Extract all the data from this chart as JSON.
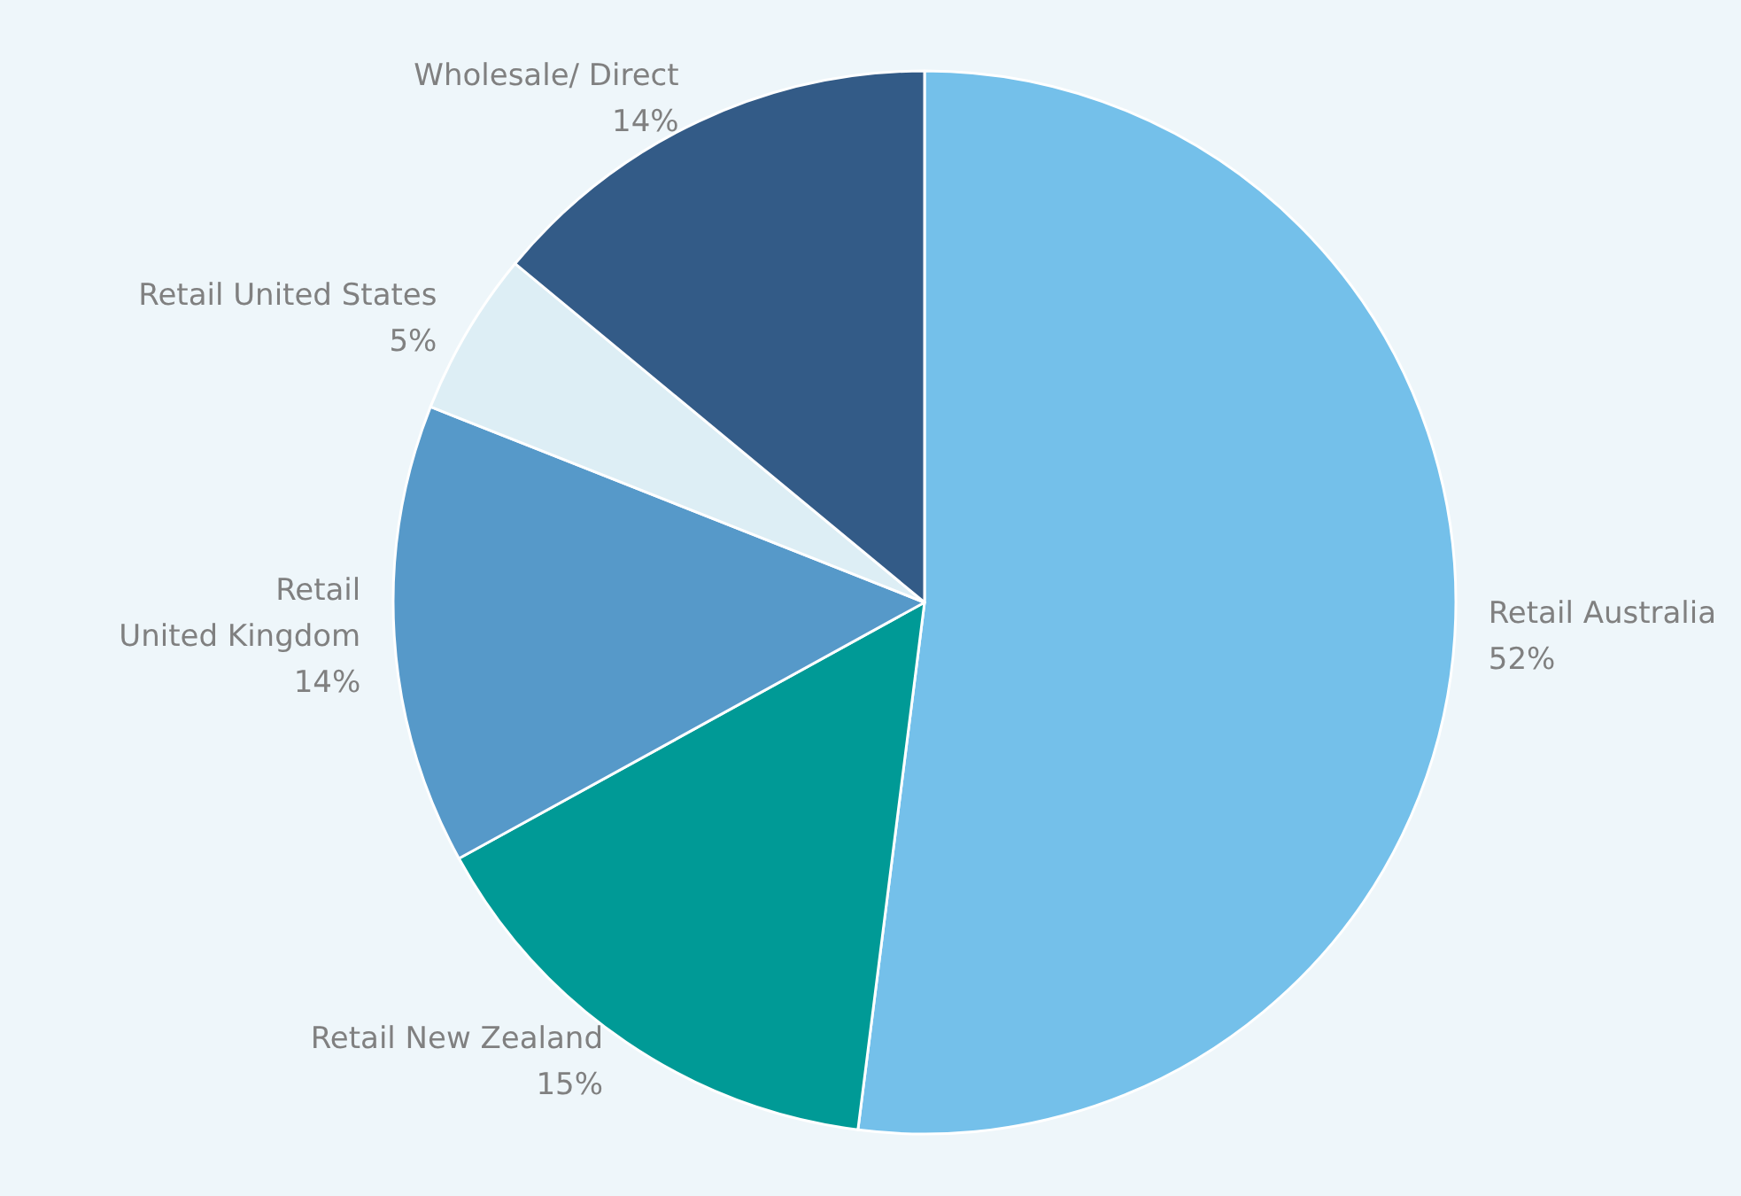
{
  "chart_data": {
    "type": "pie",
    "categories": [
      "Retail Australia",
      "Retail New Zealand",
      "Retail\nUnited Kingdom",
      "Retail United States",
      "Wholesale/ Direct"
    ],
    "values": [
      52,
      15,
      14,
      5,
      14
    ],
    "value_labels": [
      "52%",
      "15%",
      "14%",
      "5%",
      "14%"
    ],
    "colors": [
      "#74c0ea",
      "#009a96",
      "#5699c9",
      "#ddeef5",
      "#335b87"
    ],
    "legend": false
  }
}
